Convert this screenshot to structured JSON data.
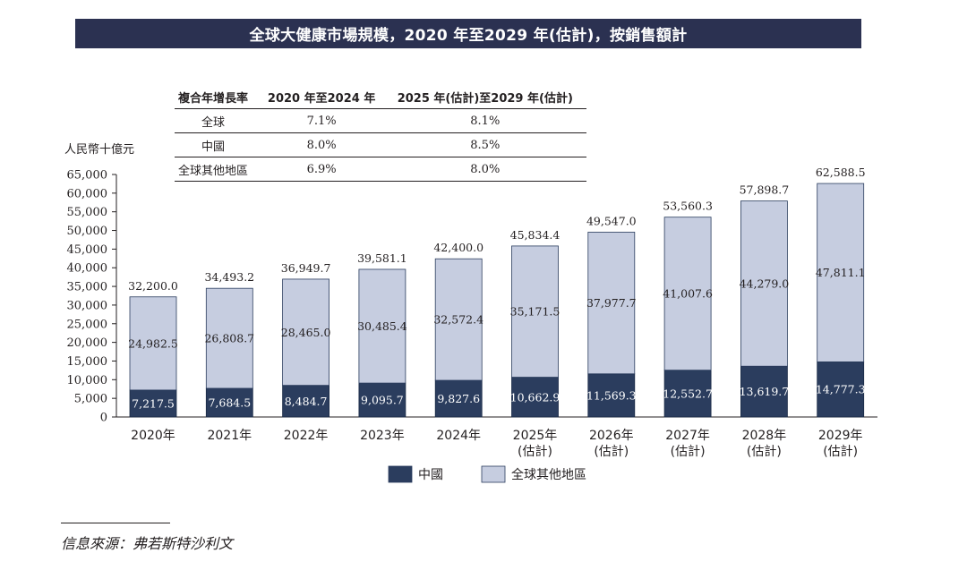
{
  "title": "全球大健康市場規模，2020 年至2029 年(估計)，按銷售額計",
  "cagr_table": {
    "headers": [
      "複合年增長率",
      "2020 年至2024 年",
      "2025 年(估計)至2029 年(估計)"
    ],
    "rows": [
      {
        "region": "全球",
        "v1": "7.1%",
        "v2": "8.1%"
      },
      {
        "region": "中國",
        "v1": "8.0%",
        "v2": "8.5%"
      },
      {
        "region": "全球其他地區",
        "v1": "6.9%",
        "v2": "8.0%"
      }
    ]
  },
  "chart_data": {
    "type": "bar",
    "stacked": true,
    "ylabel": "人民幣十億元",
    "ylim": [
      0,
      65000
    ],
    "yticks": [
      "0",
      "5,000",
      "10,000",
      "15,000",
      "20,000",
      "25,000",
      "30,000",
      "35,000",
      "40,000",
      "45,000",
      "50,000",
      "55,000",
      "60,000",
      "65,000"
    ],
    "categories": [
      [
        "2020年"
      ],
      [
        "2021年"
      ],
      [
        "2022年"
      ],
      [
        "2023年"
      ],
      [
        "2024年"
      ],
      [
        "2025年",
        "(估計)"
      ],
      [
        "2026年",
        "(估計)"
      ],
      [
        "2027年",
        "(估計)"
      ],
      [
        "2028年",
        "(估計)"
      ],
      [
        "2029年",
        "(估計)"
      ]
    ],
    "series": [
      {
        "name": "中國",
        "color": "#2b3d5e",
        "values": [
          7217.5,
          7684.5,
          8484.7,
          9095.7,
          9827.6,
          10662.9,
          11569.3,
          12552.7,
          13619.7,
          14777.3
        ],
        "labels": [
          "7,217.5",
          "7,684.5",
          "8,484.7",
          "9,095.7",
          "9,827.6",
          "10,662.9",
          "11,569.3",
          "12,552.7",
          "13,619.7",
          "14,777.3"
        ]
      },
      {
        "name": "全球其他地區",
        "color": "#c6cde0",
        "values": [
          24982.5,
          26808.7,
          28465.0,
          30485.4,
          32572.4,
          35171.5,
          37977.7,
          41007.6,
          44279.0,
          47811.1
        ],
        "labels": [
          "24,982.5",
          "26,808.7",
          "28,465.0",
          "30,485.4",
          "32,572.4",
          "35,171.5",
          "37,977.7",
          "41,007.6",
          "44,279.0",
          "47,811.1"
        ]
      }
    ],
    "totals": [
      32200.0,
      34493.2,
      36949.7,
      39581.1,
      42400.0,
      45834.4,
      49547.0,
      53560.3,
      57898.7,
      62588.5
    ],
    "total_labels": [
      "32,200.0",
      "34,493.2",
      "36,949.7",
      "39,581.1",
      "42,400.0",
      "45,834.4",
      "49,547.0",
      "53,560.3",
      "57,898.7",
      "62,588.5"
    ],
    "legend": [
      {
        "label": "中國",
        "color": "#2b3d5e"
      },
      {
        "label": "全球其他地區",
        "color": "#c6cde0"
      }
    ],
    "legend_position": "bottom",
    "grid": false
  },
  "source": "信息來源：弗若斯特沙利文"
}
